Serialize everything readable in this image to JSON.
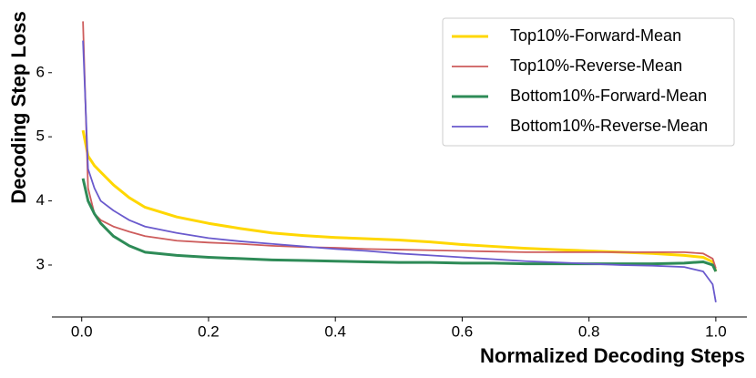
{
  "chart_data": {
    "type": "line",
    "xlabel": "Normalized Decoding Steps",
    "ylabel": "Decoding Step Loss",
    "x": [
      0.002,
      0.01,
      0.02,
      0.03,
      0.05,
      0.075,
      0.1,
      0.15,
      0.2,
      0.25,
      0.3,
      0.35,
      0.4,
      0.45,
      0.5,
      0.55,
      0.6,
      0.65,
      0.7,
      0.75,
      0.8,
      0.85,
      0.9,
      0.95,
      0.98,
      0.995,
      1.0
    ],
    "series": [
      {
        "name": "Top10%-Forward-Mean",
        "color": "#FFD700",
        "width": 3,
        "values": [
          5.1,
          4.7,
          4.55,
          4.45,
          4.25,
          4.05,
          3.9,
          3.75,
          3.65,
          3.57,
          3.5,
          3.46,
          3.43,
          3.41,
          3.39,
          3.36,
          3.32,
          3.29,
          3.26,
          3.24,
          3.22,
          3.2,
          3.18,
          3.15,
          3.12,
          3.05,
          2.9
        ]
      },
      {
        "name": "Top10%-Reverse-Mean",
        "color": "#CD5C5C",
        "width": 1.8,
        "values": [
          6.8,
          4.2,
          3.8,
          3.7,
          3.6,
          3.52,
          3.45,
          3.38,
          3.35,
          3.33,
          3.3,
          3.28,
          3.27,
          3.25,
          3.24,
          3.23,
          3.22,
          3.21,
          3.2,
          3.2,
          3.2,
          3.2,
          3.2,
          3.2,
          3.18,
          3.1,
          2.95
        ]
      },
      {
        "name": "Bottom10%-Forward-Mean",
        "color": "#2E8B57",
        "width": 3,
        "values": [
          4.35,
          4.0,
          3.8,
          3.65,
          3.45,
          3.3,
          3.2,
          3.15,
          3.12,
          3.1,
          3.08,
          3.07,
          3.06,
          3.05,
          3.04,
          3.04,
          3.03,
          3.03,
          3.02,
          3.02,
          3.02,
          3.02,
          3.02,
          3.03,
          3.05,
          3.0,
          2.9
        ]
      },
      {
        "name": "Bottom10%-Reverse-Mean",
        "color": "#6A5ACD",
        "width": 1.8,
        "values": [
          6.5,
          4.5,
          4.2,
          4.0,
          3.85,
          3.7,
          3.6,
          3.5,
          3.42,
          3.37,
          3.33,
          3.29,
          3.25,
          3.22,
          3.18,
          3.15,
          3.12,
          3.09,
          3.06,
          3.04,
          3.02,
          3.0,
          2.99,
          2.97,
          2.9,
          2.7,
          2.42
        ]
      }
    ],
    "xlim": [
      -0.047,
      1.049
    ],
    "ylim": [
      2.19,
      6.92
    ],
    "xticks": [
      {
        "value": 0,
        "label": "0.0"
      },
      0.2,
      0.4,
      0.6,
      0.8,
      {
        "value": 1,
        "label": "1.0"
      }
    ],
    "yticks": [
      3,
      4,
      5,
      6
    ],
    "legend": "upper right"
  }
}
